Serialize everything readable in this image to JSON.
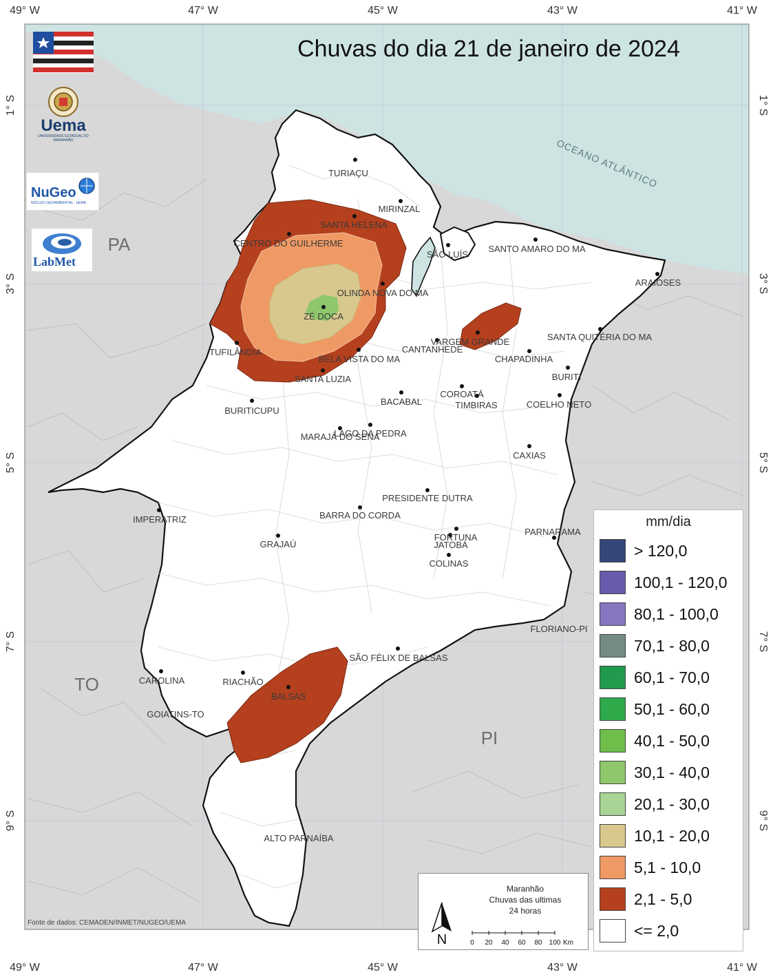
{
  "title": "Chuvas do dia 21 de janeiro de 2024",
  "axes": {
    "lon_ticks": [
      "49° W",
      "47° W",
      "45° W",
      "43° W",
      "41° W"
    ],
    "lat_ticks": [
      "1° S",
      "3° S",
      "5° S",
      "7° S",
      "9° S"
    ]
  },
  "labels": {
    "ocean": "OCEANO ATLÂNTICO",
    "states": {
      "pa": "PA",
      "to": "TO",
      "pi": "PI"
    }
  },
  "cities": [
    "TURIAÇU",
    "MIRINZAL",
    "SANTA HELENA",
    "CENTRO DO GUILHERME",
    "SÃO LUÍS",
    "SANTO AMARO DO MA",
    "ARAIOSES",
    "OLINDA NOVA DO MA",
    "ZÉ DOCA",
    "VARGEM GRANDE",
    "CANTANHEDE",
    "SANTA QUITÉRIA DO MA",
    "TUFILÂNDIA",
    "BELA VISTA DO MA",
    "CHAPADINHA",
    "SANTA LUZIA",
    "BURITI",
    "COROATÁ",
    "BACABAL",
    "TIMBIRAS",
    "COELHO NETO",
    "BURITICUPU",
    "LAGO DA PEDRA",
    "MARAJÁ DO SENA",
    "CAXIAS",
    "PRESIDENTE DUTRA",
    "IMPERATRIZ",
    "BARRA DO CORDA",
    "PARNARAMA",
    "FORTUNA",
    "GRAJAÚ",
    "JATOBÁ",
    "COLINAS",
    "FLORIANO-PI",
    "SÃO FÉLIX DE BALSAS",
    "CAROLINA",
    "RIACHÃO",
    "BALSAS",
    "GOIATINS-TO",
    "ALTO PARNAÍBA"
  ],
  "legend": {
    "title": "mm/dia",
    "items": [
      {
        "label": "> 120,0",
        "color": "#354678"
      },
      {
        "label": "100,1 - 120,0",
        "color": "#6a5aad"
      },
      {
        "label": "80,1 - 100,0",
        "color": "#8675bf"
      },
      {
        "label": "70,1 - 80,0",
        "color": "#748a85"
      },
      {
        "label": "60,1 - 70,0",
        "color": "#219a4d"
      },
      {
        "label": "50,1 - 60,0",
        "color": "#2eaa4a"
      },
      {
        "label": "40,1 - 50,0",
        "color": "#6fbd4b"
      },
      {
        "label": "30,1 - 40,0",
        "color": "#8ec76c"
      },
      {
        "label": "20,1 - 30,0",
        "color": "#a8d495"
      },
      {
        "label": "10,1 - 20,0",
        "color": "#d8c88e"
      },
      {
        "label": "5,1 - 10,0",
        "color": "#ef9a64"
      },
      {
        "label": "2,1 - 5,0",
        "color": "#b5401e"
      },
      {
        "label": "<= 2,0",
        "color": "#ffffff"
      }
    ]
  },
  "infobox": {
    "line1": "Maranhão",
    "line2": "Chuvas das ultimas",
    "line3": "24 horas",
    "north": "N",
    "scale_ticks": [
      "0",
      "20",
      "40",
      "60",
      "80",
      "100"
    ],
    "scale_unit": "Km"
  },
  "source": "Fonte de dados: CEMADEN/INMET/NUGEO/UEMA",
  "logos": {
    "uema": "Uema",
    "uema_sub": "UNIVERSIDADE ESTADUAL DO MARANHÃO",
    "nugeo": "NuGeo",
    "nugeo_sub": "NÚCLEO GEOAMBIENTAL - UEMA",
    "labmet": "LabMet"
  },
  "colors": {
    "ocean": "#cde4e3",
    "land": "#d8d8d8",
    "state_fill": "#ffffff",
    "rain_2_5": "#b5401e",
    "rain_5_10": "#ef9a64",
    "rain_10_20": "#d8c88e",
    "rain_30_40": "#8ec76c"
  }
}
